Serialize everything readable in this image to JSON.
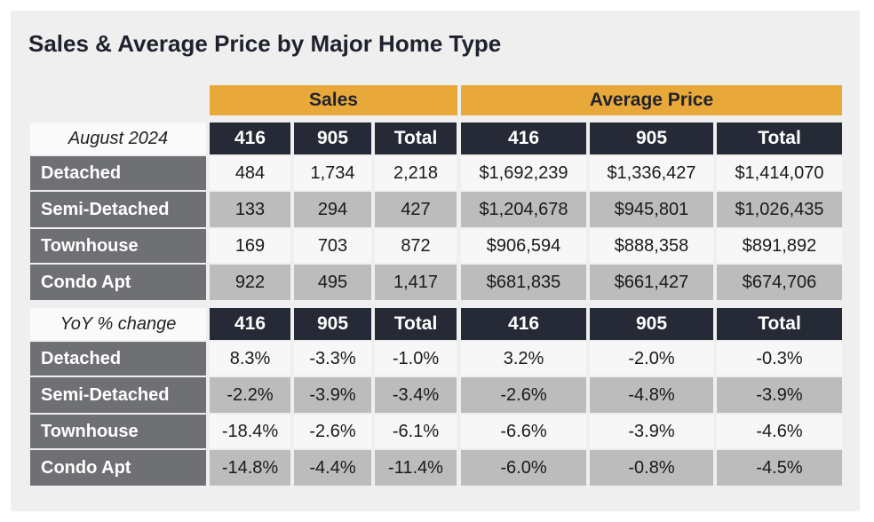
{
  "title": "Sales & Average Price by Major Home Type",
  "groups": [
    "Sales",
    "Average Price"
  ],
  "col_headers": [
    "416",
    "905",
    "Total",
    "416",
    "905",
    "Total"
  ],
  "row_labels": [
    "Detached",
    "Semi-Detached",
    "Townhouse",
    "Condo Apt"
  ],
  "colors": {
    "group_header": "#e8a93a",
    "column_header": "#262a36",
    "row_label": "#6f7074",
    "row_light": "#f7f7f7",
    "row_shaded": "#bcbcbc",
    "panel": "#efefef"
  },
  "chart_data": [
    {
      "type": "table",
      "period_label": "August 2024",
      "columns": [
        "416",
        "905",
        "Total",
        "416",
        "905",
        "Total"
      ],
      "rows": [
        "Detached",
        "Semi-Detached",
        "Townhouse",
        "Condo Apt"
      ],
      "cells": [
        [
          "484",
          "1,734",
          "2,218",
          "$1,692,239",
          "$1,336,427",
          "$1,414,070"
        ],
        [
          "133",
          "294",
          "427",
          "$1,204,678",
          "$945,801",
          "$1,026,435"
        ],
        [
          "169",
          "703",
          "872",
          "$906,594",
          "$888,358",
          "$891,892"
        ],
        [
          "922",
          "495",
          "1,417",
          "$681,835",
          "$661,427",
          "$674,706"
        ]
      ]
    },
    {
      "type": "table",
      "period_label": "YoY % change",
      "columns": [
        "416",
        "905",
        "Total",
        "416",
        "905",
        "Total"
      ],
      "rows": [
        "Detached",
        "Semi-Detached",
        "Townhouse",
        "Condo Apt"
      ],
      "cells": [
        [
          "8.3%",
          "-3.3%",
          "-1.0%",
          "3.2%",
          "-2.0%",
          "-0.3%"
        ],
        [
          "-2.2%",
          "-3.9%",
          "-3.4%",
          "-2.6%",
          "-4.8%",
          "-3.9%"
        ],
        [
          "-18.4%",
          "-2.6%",
          "-6.1%",
          "-6.6%",
          "-3.9%",
          "-4.6%"
        ],
        [
          "-14.8%",
          "-4.4%",
          "-11.4%",
          "-6.0%",
          "-0.8%",
          "-4.5%"
        ]
      ]
    }
  ]
}
